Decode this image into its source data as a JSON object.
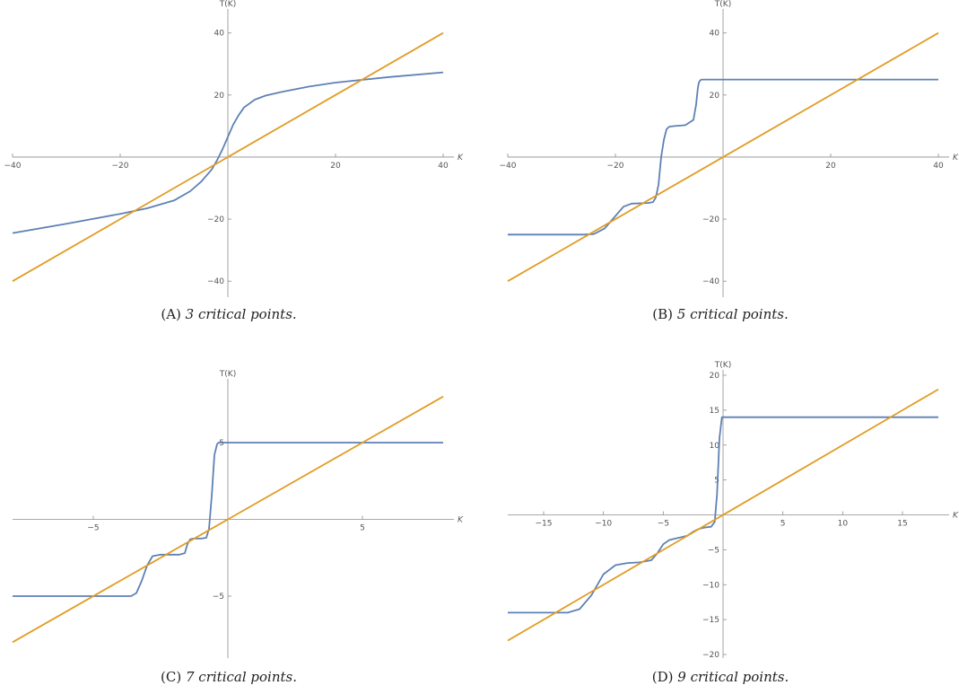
{
  "colors": {
    "curve": "#5e81b5",
    "identity": "#e19c24",
    "axis": "#8c8c8c"
  },
  "chart_data": [
    {
      "type": "line",
      "caption_label": "(A)",
      "caption_text": "3 critical points.",
      "ylabel": "T(K)",
      "xlabel": "K",
      "xlim": [
        -40,
        40
      ],
      "ylim": [
        -44,
        46
      ],
      "xticks": [
        -40,
        -20,
        20,
        40
      ],
      "yticks": [
        -40,
        -20,
        20,
        40
      ],
      "series": [
        {
          "x": [
            -40,
            -30,
            -20,
            -15,
            -10,
            -7,
            -5,
            -3,
            -2,
            -1,
            0,
            1,
            2,
            3,
            5,
            7,
            10,
            15,
            20,
            30,
            40
          ],
          "y": [
            -24.5,
            -21.5,
            -18.3,
            -16.5,
            -14,
            -11,
            -8,
            -4,
            -1,
            2.5,
            6.5,
            10.5,
            13.5,
            16,
            18.5,
            19.8,
            21,
            22.7,
            24,
            25.8,
            27.3
          ]
        },
        {
          "x": [
            -40,
            40
          ],
          "y": [
            -40,
            40
          ]
        }
      ]
    },
    {
      "type": "line",
      "caption_label": "(B)",
      "caption_text": "5 critical points.",
      "ylabel": "T(K)",
      "xlabel": "K",
      "xlim": [
        -40,
        40
      ],
      "ylim": [
        -44,
        46
      ],
      "xticks": [
        -40,
        -20,
        20,
        40
      ],
      "yticks": [
        -40,
        -20,
        20,
        40
      ],
      "series": [
        {
          "x": [
            -40,
            -26,
            -24,
            -22,
            -20,
            -18.5,
            -17,
            -14,
            -13,
            -12.5,
            -12,
            -11.5,
            -11,
            -10.5,
            -10,
            -9,
            -7,
            -5.5,
            -5,
            -4.7,
            -4.5,
            -4.2,
            -4,
            -3,
            40
          ],
          "y": [
            -25,
            -25,
            -24.8,
            -23,
            -19,
            -16,
            -15,
            -14.8,
            -14.5,
            -13,
            -9,
            0,
            5.5,
            9,
            9.8,
            10,
            10.3,
            12,
            17,
            22,
            24,
            24.8,
            25,
            25,
            25
          ]
        },
        {
          "x": [
            -40,
            40
          ],
          "y": [
            -40,
            40
          ]
        }
      ]
    },
    {
      "type": "line",
      "caption_label": "(C)",
      "caption_text": "7 critical points.",
      "ylabel": "T(K)",
      "xlabel": "K",
      "xlim": [
        -8,
        8
      ],
      "ylim": [
        -8.8,
        8.8
      ],
      "xticks": [
        -5,
        5
      ],
      "yticks": [
        -5,
        5
      ],
      "series": [
        {
          "x": [
            -8,
            -3.6,
            -3.4,
            -3.2,
            -3.0,
            -2.8,
            -2.5,
            -1.8,
            -1.6,
            -1.5,
            -1.4,
            -1.3,
            -1.0,
            -0.8,
            -0.7,
            -0.6,
            -0.5,
            -0.4,
            -0.35,
            -0.3,
            8
          ],
          "y": [
            -5,
            -5,
            -4.8,
            -4,
            -3,
            -2.4,
            -2.3,
            -2.3,
            -2.2,
            -1.6,
            -1.3,
            -1.25,
            -1.25,
            -1.2,
            -0.6,
            1.5,
            4.2,
            4.9,
            5,
            5,
            5
          ]
        },
        {
          "x": [
            -8,
            8
          ],
          "y": [
            -8,
            8
          ]
        }
      ]
    },
    {
      "type": "line",
      "caption_label": "(D)",
      "caption_text": "9 critical points.",
      "ylabel": "T(K)",
      "xlabel": "K",
      "xlim": [
        -18,
        18
      ],
      "ylim": [
        -20,
        20
      ],
      "xticks": [
        -15,
        -10,
        -5,
        5,
        10,
        15
      ],
      "yticks": [
        -20,
        -15,
        -10,
        -5,
        5,
        10,
        15,
        20
      ],
      "series": [
        {
          "x": [
            -18,
            -13,
            -12,
            -11,
            -10,
            -9,
            -8,
            -7,
            -6,
            -5.5,
            -5,
            -4.5,
            -4,
            -3,
            -2.5,
            -2,
            -1.5,
            -1.0,
            -0.7,
            -0.5,
            -0.3,
            -0.1,
            18
          ],
          "y": [
            -14,
            -14,
            -13.5,
            -11.5,
            -8.5,
            -7.2,
            -6.9,
            -6.8,
            -6.5,
            -5.5,
            -4.2,
            -3.6,
            -3.4,
            -3.0,
            -2.4,
            -2.0,
            -1.8,
            -1.7,
            -1.0,
            3,
            11,
            14,
            14
          ]
        },
        {
          "x": [
            -18,
            18
          ],
          "y": [
            -18,
            18
          ]
        }
      ]
    }
  ]
}
